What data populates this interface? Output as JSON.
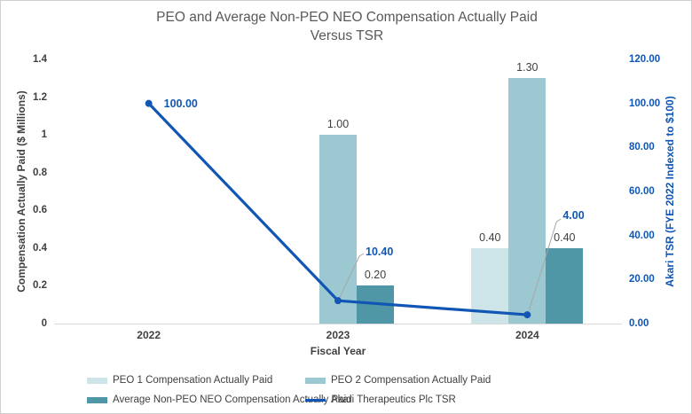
{
  "chart_data": {
    "type": "combo-bar-line",
    "title_line1": "PEO and Average Non-PEO NEO Compensation Actually Paid",
    "title_line2": "Versus TSR",
    "xlabel": "Fiscal Year",
    "ylabel_left": "Compensation Actually Paid ($ Millions)",
    "ylabel_right": "Akari TSR (FYE 2022 Indexed to $100)",
    "categories": [
      "2022",
      "2023",
      "2024"
    ],
    "y_left_axis": {
      "min": 0,
      "max": 1.4,
      "step": 0.2,
      "ticks": [
        "0",
        "0.2",
        "0.4",
        "0.6",
        "0.8",
        "1",
        "1.2",
        "1.4"
      ],
      "tick_values": [
        0,
        0.2,
        0.4,
        0.6,
        0.8,
        1,
        1.2,
        1.4
      ]
    },
    "y_right_axis": {
      "min": 0,
      "max": 120,
      "step": 20,
      "ticks": [
        "0.00",
        "20.00",
        "40.00",
        "60.00",
        "80.00",
        "100.00",
        "120.00"
      ],
      "tick_values": [
        0,
        20,
        40,
        60,
        80,
        100,
        120
      ]
    },
    "bar_series": [
      {
        "name": "PEO 1 Compensation Actually Paid",
        "color": "#cde4e9",
        "values": [
          null,
          null,
          0.4
        ],
        "labels": [
          null,
          null,
          "0.40"
        ]
      },
      {
        "name": "PEO 2 Compensation Actually Paid",
        "color": "#9cc8d2",
        "values": [
          null,
          1.0,
          1.3
        ],
        "labels": [
          null,
          "1.00",
          "1.30"
        ]
      },
      {
        "name": "Average Non-PEO NEO Compensation Actually Paid",
        "color": "#4f96a6",
        "values": [
          null,
          0.2,
          0.4
        ],
        "labels": [
          null,
          "0.20",
          "0.40"
        ]
      }
    ],
    "line_series": {
      "name": "Akari Therapeutics Plc TSR",
      "color": "#1156b4",
      "values": [
        100.0,
        10.4,
        4.0
      ],
      "labels": [
        "100.00",
        "10.40",
        "4.00"
      ]
    },
    "colors": {
      "axis_line": "#d9d9d9",
      "leader_line": "#a6a6a6",
      "axis_text": "#404040",
      "title_text": "#595959",
      "right_axis_text": "#1156b4"
    },
    "legend_position": "bottom"
  }
}
